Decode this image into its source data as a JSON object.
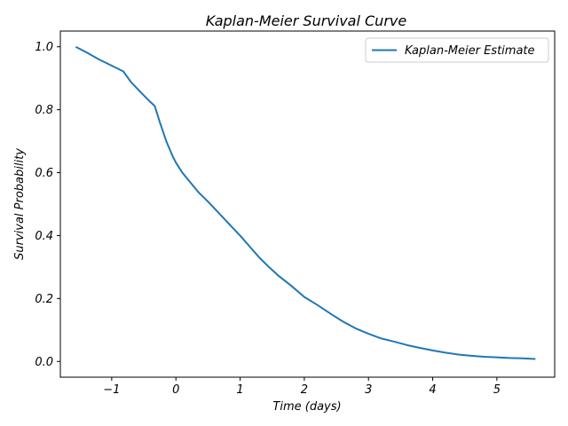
{
  "chart_data": {
    "type": "line",
    "title": "Kaplan-Meier Survival Curve",
    "xlabel": "Time (days)",
    "ylabel": "Survival Probability",
    "xlim": [
      -1.8,
      5.9
    ],
    "ylim": [
      -0.05,
      1.05
    ],
    "xticks": [
      -1,
      0,
      1,
      2,
      3,
      4,
      5
    ],
    "xtick_labels": [
      "−1",
      "0",
      "1",
      "2",
      "3",
      "4",
      "5"
    ],
    "yticks": [
      0.0,
      0.2,
      0.4,
      0.6,
      0.8,
      1.0
    ],
    "ytick_labels": [
      "0.0",
      "0.2",
      "0.4",
      "0.6",
      "0.8",
      "1.0"
    ],
    "grid": false,
    "legend_position": "top-right",
    "series": [
      {
        "name": "Kaplan-Meier Estimate",
        "color": "#1f77b4",
        "x": [
          -1.56,
          -1.4,
          -1.2,
          -1.0,
          -0.82,
          -0.7,
          -0.55,
          -0.4,
          -0.33,
          -0.25,
          -0.15,
          -0.05,
          0.0,
          0.1,
          0.2,
          0.35,
          0.5,
          0.7,
          0.85,
          1.0,
          1.15,
          1.3,
          1.45,
          1.6,
          1.8,
          2.0,
          2.2,
          2.4,
          2.6,
          2.8,
          3.0,
          3.2,
          3.4,
          3.6,
          3.8,
          4.0,
          4.2,
          4.4,
          4.6,
          4.8,
          5.0,
          5.2,
          5.4,
          5.6
        ],
        "y": [
          1.0,
          0.983,
          0.96,
          0.94,
          0.922,
          0.888,
          0.856,
          0.825,
          0.812,
          0.76,
          0.7,
          0.652,
          0.632,
          0.6,
          0.575,
          0.538,
          0.508,
          0.465,
          0.432,
          0.4,
          0.365,
          0.33,
          0.3,
          0.272,
          0.24,
          0.205,
          0.18,
          0.153,
          0.127,
          0.105,
          0.088,
          0.073,
          0.063,
          0.052,
          0.043,
          0.035,
          0.028,
          0.022,
          0.018,
          0.015,
          0.013,
          0.011,
          0.01,
          0.008
        ]
      }
    ]
  }
}
